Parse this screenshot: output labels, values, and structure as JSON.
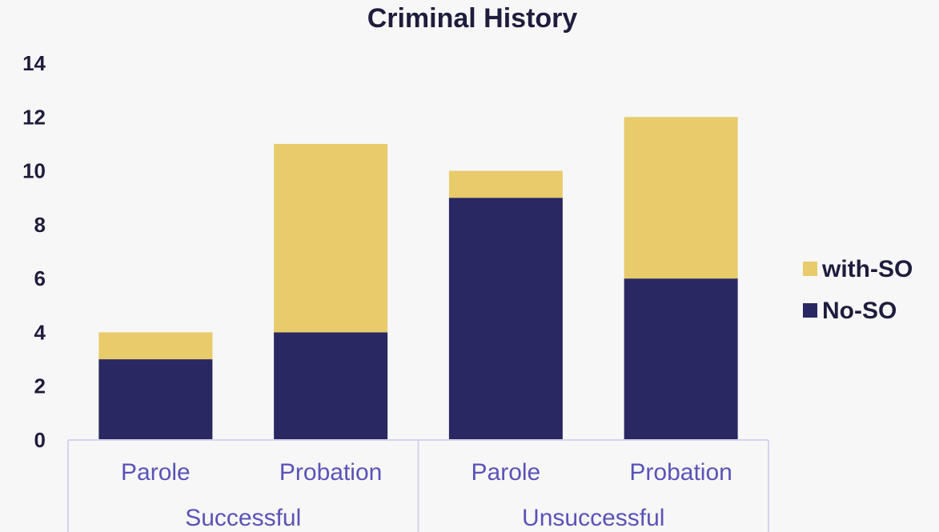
{
  "chart_data": {
    "type": "bar",
    "stacked": true,
    "title": "Criminal History",
    "categories": [
      "Parole",
      "Probation",
      "Parole",
      "Probation"
    ],
    "groups": [
      {
        "label": "Successful",
        "categories": [
          0,
          1
        ]
      },
      {
        "label": "Unsuccessful",
        "categories": [
          2,
          3
        ]
      }
    ],
    "series": [
      {
        "name": "No-SO",
        "color": "#292862",
        "values": [
          3,
          4,
          9,
          6
        ]
      },
      {
        "name": "with-SO",
        "color": "#e8cb6b",
        "values": [
          1,
          7,
          1,
          6
        ]
      }
    ],
    "ylim": [
      0,
      14
    ],
    "yticks": [
      "0",
      "2",
      "4",
      "6",
      "8",
      "10",
      "12",
      "14"
    ],
    "legend": {
      "position": "right",
      "order": [
        "with-SO",
        "No-SO"
      ]
    },
    "grid": false
  }
}
